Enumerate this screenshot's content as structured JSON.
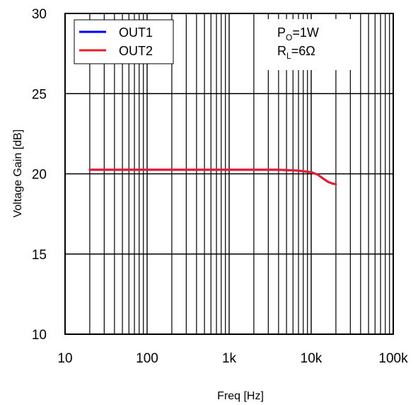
{
  "chart_data": {
    "type": "line",
    "xscale": "log",
    "xlim": [
      10,
      100000
    ],
    "ylim": [
      10,
      30
    ],
    "xlabel": "Freq [Hz]",
    "ylabel": "Voltage Gain [dB]",
    "x_ticks": [
      {
        "value": 10,
        "label": "10"
      },
      {
        "value": 100,
        "label": "100"
      },
      {
        "value": 1000,
        "label": "1k"
      },
      {
        "value": 10000,
        "label": "10k"
      },
      {
        "value": 100000,
        "label": "100k"
      }
    ],
    "y_ticks": [
      {
        "value": 10,
        "label": "10"
      },
      {
        "value": 15,
        "label": "15"
      },
      {
        "value": 20,
        "label": "20"
      },
      {
        "value": 25,
        "label": "25"
      },
      {
        "value": 30,
        "label": "30"
      }
    ],
    "grid": true,
    "legend_position": "top-left",
    "series": [
      {
        "name": "OUT1",
        "color": "#0000ff",
        "x": [
          20,
          100,
          1000,
          4000,
          7000,
          10000,
          12000,
          14000,
          16000,
          18000,
          20000
        ],
        "y": [
          20.25,
          20.25,
          20.25,
          20.25,
          20.2,
          20.1,
          19.95,
          19.7,
          19.5,
          19.4,
          19.35
        ]
      },
      {
        "name": "OUT2",
        "color": "#ee1c25",
        "x": [
          20,
          100,
          1000,
          4000,
          7000,
          10000,
          12000,
          14000,
          16000,
          18000,
          20000
        ],
        "y": [
          20.25,
          20.25,
          20.25,
          20.25,
          20.2,
          20.1,
          19.95,
          19.7,
          19.5,
          19.4,
          19.35
        ]
      }
    ],
    "annotation": {
      "line1_main": "P",
      "line1_sub": "O",
      "line1_rest": "=1W",
      "line2_main": "R",
      "line2_sub": "L",
      "line2_rest": "=6Ω"
    }
  }
}
